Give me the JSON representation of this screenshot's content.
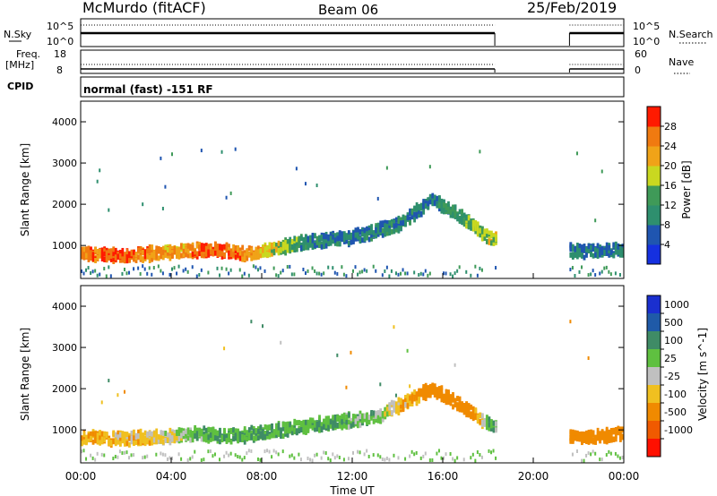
{
  "header": {
    "station": "McMurdo (fitACF)",
    "beam": "Beam 06",
    "date": "25/Feb/2019"
  },
  "noise_panel": {
    "left_label": "N.Sky",
    "right_label": "N.Search",
    "ticks": [
      "10^5",
      "10^0"
    ]
  },
  "freq_panel": {
    "left_label_1": "Freq.",
    "left_label_2": "[MHz]",
    "left_ticks": [
      "18",
      "8"
    ],
    "right_label": "Nave",
    "right_ticks": [
      "60",
      "0"
    ]
  },
  "cpid_panel": {
    "label": "CPID",
    "text": "normal (fast) -151 RF"
  },
  "chart_data": [
    {
      "type": "heatmap",
      "name": "power",
      "ylabel": "Slant Range [km]",
      "colorbar_label": "Power [dB]",
      "colorbar_ticks": [
        "4",
        "8",
        "12",
        "16",
        "20",
        "24",
        "28"
      ],
      "colorbar_colors": [
        "#1530e0",
        "#1f55b0",
        "#2e8f6e",
        "#3f9a58",
        "#c9d820",
        "#f0a318",
        "#f07a10",
        "#ff1a00"
      ],
      "yticks": [
        "1000",
        "2000",
        "3000",
        "4000"
      ],
      "ylim": [
        200,
        4500
      ],
      "data_gap_hours": [
        18.3,
        21.6
      ],
      "echo_band": [
        {
          "t": 0,
          "range_km": 800,
          "power_db": 26
        },
        {
          "t": 2,
          "range_km": 750,
          "power_db": 28
        },
        {
          "t": 4,
          "range_km": 850,
          "power_db": 22
        },
        {
          "t": 6,
          "range_km": 900,
          "power_db": 28
        },
        {
          "t": 7.5,
          "range_km": 800,
          "power_db": 24
        },
        {
          "t": 10,
          "range_km": 1100,
          "power_db": 10
        },
        {
          "t": 12,
          "range_km": 1200,
          "power_db": 8
        },
        {
          "t": 14,
          "range_km": 1500,
          "power_db": 10
        },
        {
          "t": 15.5,
          "range_km": 2100,
          "power_db": 8
        },
        {
          "t": 16.5,
          "range_km": 1800,
          "power_db": 12
        },
        {
          "t": 18,
          "range_km": 1200,
          "power_db": 18
        },
        {
          "t": 22,
          "range_km": 850,
          "power_db": 8
        },
        {
          "t": 24,
          "range_km": 900,
          "power_db": 8
        }
      ]
    },
    {
      "type": "heatmap",
      "name": "velocity",
      "ylabel": "Slant Range [km]",
      "colorbar_label": "Velocity [m s^-1]",
      "colorbar_ticks": [
        "1000",
        "500",
        "100",
        "25",
        "-25",
        "-100",
        "-500",
        "-1000"
      ],
      "colorbar_colors": [
        "#1a2fcf",
        "#1f5aa8",
        "#3f8b66",
        "#5fc040",
        "#c0c0c0",
        "#f0c020",
        "#f08a00",
        "#f05a00",
        "#ff1000"
      ],
      "yticks": [
        "1000",
        "2000",
        "3000",
        "4000"
      ],
      "ylim": [
        200,
        4500
      ],
      "data_gap_hours": [
        18.3,
        21.6
      ],
      "echo_band": [
        {
          "t": 0,
          "range_km": 800,
          "velocity_ms": -100
        },
        {
          "t": 3,
          "range_km": 800,
          "velocity_ms": -50
        },
        {
          "t": 5,
          "range_km": 900,
          "velocity_ms": 60
        },
        {
          "t": 7,
          "range_km": 850,
          "velocity_ms": 120
        },
        {
          "t": 10,
          "range_km": 1100,
          "velocity_ms": 90
        },
        {
          "t": 13,
          "range_km": 1300,
          "velocity_ms": 60
        },
        {
          "t": 15.5,
          "range_km": 2000,
          "velocity_ms": -200
        },
        {
          "t": 17,
          "range_km": 1500,
          "velocity_ms": -300
        },
        {
          "t": 18,
          "range_km": 1100,
          "velocity_ms": 100
        },
        {
          "t": 22,
          "range_km": 800,
          "velocity_ms": -300
        },
        {
          "t": 24,
          "range_km": 900,
          "velocity_ms": -250
        }
      ]
    }
  ],
  "x_axis": {
    "label": "Time UT",
    "ticks": [
      "00:00",
      "04:00",
      "08:00",
      "12:00",
      "16:00",
      "20:00",
      "00:00"
    ]
  }
}
